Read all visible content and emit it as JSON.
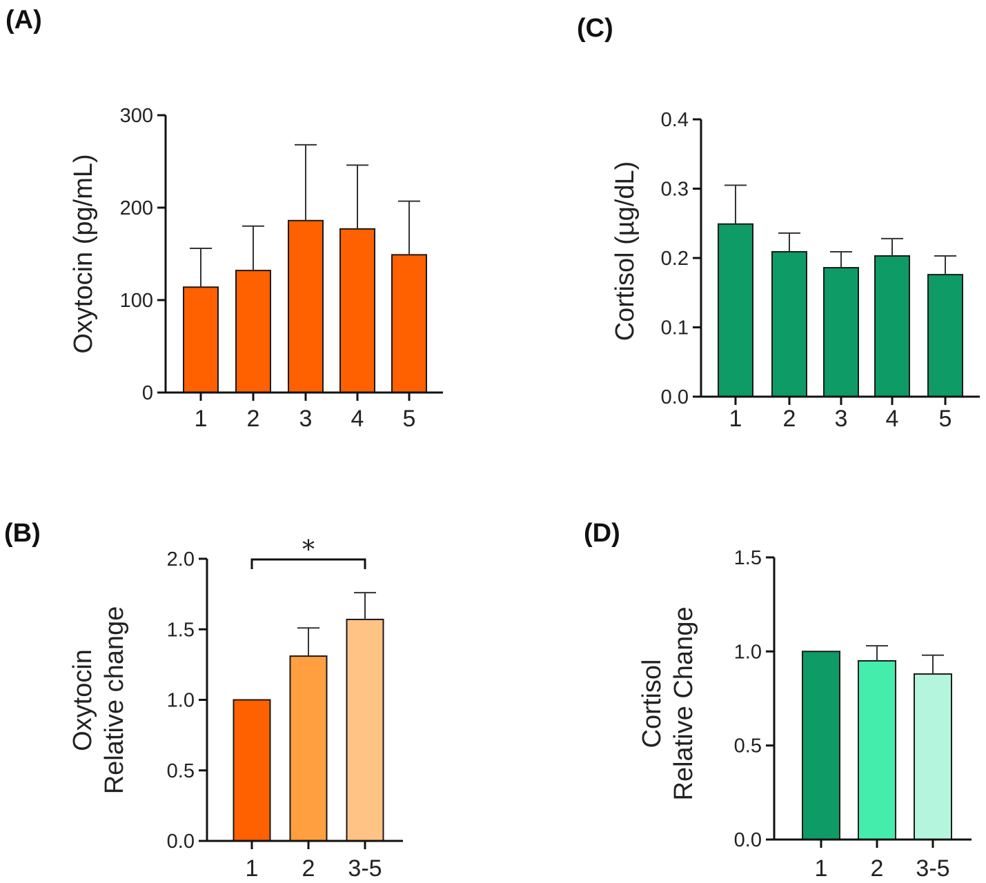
{
  "panels": [
    {
      "label": "(A)",
      "chart_data": {
        "type": "bar",
        "categories": [
          "1",
          "2",
          "3",
          "4",
          "5"
        ],
        "values": [
          114,
          132,
          186,
          177,
          149
        ],
        "errors": [
          42,
          48,
          82,
          69,
          58
        ],
        "ylabel": [
          "Oxytocin (pg/mL)"
        ],
        "ylim": [
          0,
          300
        ],
        "yticks": [
          "0",
          "100",
          "200",
          "300"
        ],
        "colors": [
          "#FF6000",
          "#FF6000",
          "#FF6000",
          "#FF6000",
          "#FF6000"
        ]
      }
    },
    {
      "label": "(B)",
      "chart_data": {
        "type": "bar",
        "categories": [
          "1",
          "2",
          "3-5"
        ],
        "values": [
          1.0,
          1.31,
          1.57
        ],
        "errors": [
          0,
          0.2,
          0.19
        ],
        "ylabel": [
          "Oxytocin",
          "Relative change"
        ],
        "ylim": [
          0,
          2.0
        ],
        "yticks": [
          "0.0",
          "0.5",
          "1.0",
          "1.5",
          "2.0"
        ],
        "colors": [
          "#FF6000",
          "#FF9F3F",
          "#FFC385"
        ],
        "significance": {
          "from": "1",
          "to": "3-5",
          "symbol": "*"
        }
      }
    },
    {
      "label": "(C)",
      "chart_data": {
        "type": "bar",
        "categories": [
          "1",
          "2",
          "3",
          "4",
          "5"
        ],
        "values": [
          0.249,
          0.209,
          0.186,
          0.203,
          0.176
        ],
        "errors": [
          0.056,
          0.027,
          0.023,
          0.025,
          0.027
        ],
        "ylabel": [
          "Cortisol (µg/dL)"
        ],
        "ylim": [
          0,
          0.4
        ],
        "yticks": [
          "0.0",
          "0.1",
          "0.2",
          "0.3",
          "0.4"
        ],
        "colors": [
          "#0E9B65",
          "#0E9B65",
          "#0E9B65",
          "#0E9B65",
          "#0E9B65"
        ]
      }
    },
    {
      "label": "(D)",
      "chart_data": {
        "type": "bar",
        "categories": [
          "1",
          "2",
          "3-5"
        ],
        "values": [
          1.0,
          0.95,
          0.88
        ],
        "errors": [
          0,
          0.08,
          0.1
        ],
        "ylabel": [
          "Cortisol",
          "Relative Change"
        ],
        "ylim": [
          0,
          1.5
        ],
        "yticks": [
          "0.0",
          "0.5",
          "1.0",
          "1.5"
        ],
        "colors": [
          "#0E9B65",
          "#45EDAD",
          "#B4F6DD"
        ]
      }
    }
  ]
}
